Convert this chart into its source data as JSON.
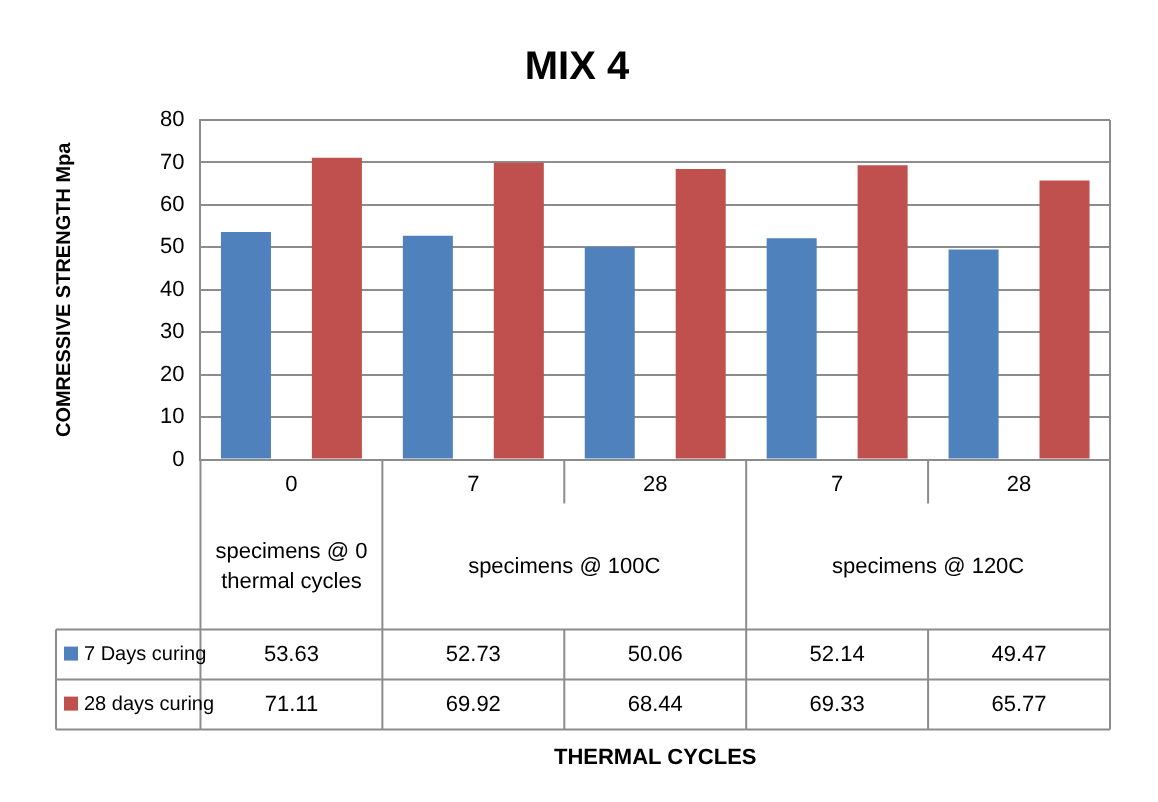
{
  "chart_data": {
    "type": "bar",
    "title": "MIX 4",
    "ylabel": "COMRESSIVE STRENGTH Mpa",
    "categories": [
      "0",
      "7",
      "28",
      "7",
      "28"
    ],
    "series": [
      {
        "name": "7 Days curing",
        "color": "#4f81bd",
        "values": [
          53.63,
          52.73,
          50.06,
          52.14,
          49.47
        ]
      },
      {
        "name": "28 days curing",
        "color": "#c0504d",
        "values": [
          71.11,
          69.92,
          68.44,
          69.33,
          65.77
        ]
      }
    ],
    "annotations": [
      "specimens @ 0 thermal cycles",
      "specimens @ 100C",
      "specimens @ 120C",
      "THERMAL CYCLES"
    ],
    "ylim": [
      0,
      80
    ],
    "yticks": [
      0,
      10,
      20,
      30,
      40,
      50,
      60,
      70,
      80
    ],
    "grid": "y",
    "data_labels": true,
    "legend": "bottom left"
  }
}
